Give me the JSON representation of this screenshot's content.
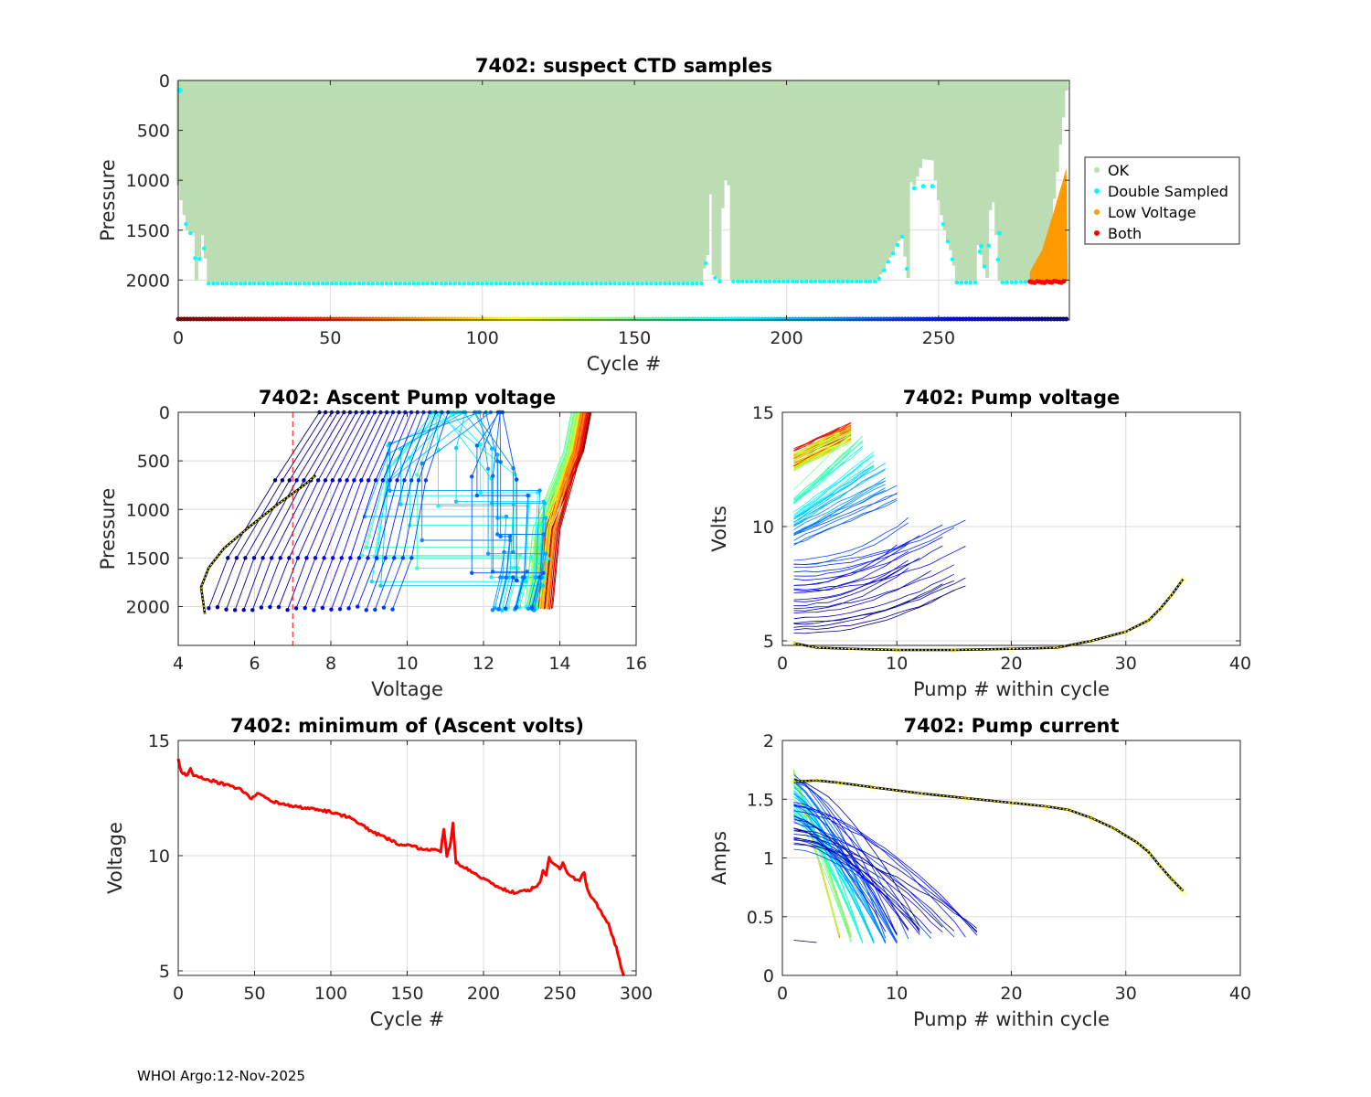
{
  "footer": "WHOI Argo:12-Nov-2025",
  "chart_data": [
    {
      "id": "suspect",
      "type": "scatter",
      "title": "7402: suspect CTD samples",
      "xlabel": "Cycle #",
      "ylabel": "Pressure",
      "xlim": [
        0,
        293
      ],
      "ylim": [
        0,
        2400
      ],
      "y_reversed": true,
      "xticks": [
        0,
        50,
        100,
        150,
        200,
        250
      ],
      "yticks": [
        0,
        500,
        1000,
        1500,
        2000
      ],
      "legend": {
        "position": "right",
        "entries": [
          {
            "label": "OK",
            "color": "#bcdcb4"
          },
          {
            "label": "Double Sampled",
            "color": "#00ffff"
          },
          {
            "label": "Low Voltage",
            "color": "#ff9900"
          },
          {
            "label": "Both",
            "color": "#ff0000"
          }
        ]
      },
      "ok_profile_bottom": [
        [
          0,
          1050
        ],
        [
          3,
          1500
        ],
        [
          5,
          1530
        ],
        [
          6,
          2000
        ],
        [
          8,
          1550
        ],
        [
          10,
          2020
        ],
        [
          172,
          2020
        ],
        [
          174,
          1750
        ],
        [
          175,
          1140
        ],
        [
          176,
          1950
        ],
        [
          178,
          2000
        ],
        [
          179,
          1280
        ],
        [
          180,
          1000
        ],
        [
          181,
          1050
        ],
        [
          182,
          2000
        ],
        [
          230,
          2000
        ],
        [
          238,
          1550
        ],
        [
          240,
          1980
        ],
        [
          241,
          1020
        ],
        [
          242,
          1050
        ],
        [
          245,
          790
        ],
        [
          248,
          800
        ],
        [
          250,
          1200
        ],
        [
          252,
          1500
        ],
        [
          254,
          1700
        ],
        [
          256,
          2010
        ],
        [
          262,
          2010
        ],
        [
          263,
          1650
        ],
        [
          265,
          1850
        ],
        [
          266,
          1980
        ],
        [
          267,
          1300
        ],
        [
          268,
          1220
        ],
        [
          269,
          1550
        ],
        [
          270,
          2010
        ],
        [
          285,
          2000
        ],
        [
          292,
          100
        ]
      ],
      "double_sampled_cycles_first": 1,
      "low_voltage_onset_cycle": 280,
      "low_voltage_top": [
        [
          280,
          1920
        ],
        [
          284,
          1700
        ],
        [
          288,
          1300
        ],
        [
          292,
          880
        ]
      ],
      "both_pressure": 2010,
      "cycle_colorbar": "jet colors across cycles 0-293 drawn at bottom edge"
    },
    {
      "id": "ascent",
      "type": "line",
      "title": "7402: Ascent Pump voltage",
      "xlabel": "Voltage",
      "ylabel": "Pressure",
      "xlim": [
        4,
        16
      ],
      "ylim": [
        0,
        2400
      ],
      "y_reversed": true,
      "xticks": [
        4,
        6,
        8,
        10,
        12,
        14,
        16
      ],
      "yticks": [
        0,
        500,
        1000,
        1500,
        2000
      ],
      "threshold_voltage": 7,
      "series_summary": "One line per cycle (jet colormap by cycle). Early cycles (red) near 13.5-14.5 V; later cycles (blue) spread from 8-14 V; last cycles (dark navy) 4.7-11 V; final cycle highlighted yellow",
      "last_cycle_yellow": [
        [
          4.7,
          2080
        ],
        [
          4.6,
          1800
        ],
        [
          4.8,
          1600
        ],
        [
          5.2,
          1400
        ],
        [
          5.8,
          1200
        ],
        [
          6.6,
          950
        ],
        [
          7.3,
          750
        ],
        [
          7.6,
          650
        ]
      ]
    },
    {
      "id": "pumpv",
      "type": "line",
      "title": "7402: Pump voltage",
      "xlabel": "Pump # within cycle",
      "ylabel": "Volts",
      "xlim": [
        0,
        40
      ],
      "ylim": [
        4.8,
        15
      ],
      "xticks": [
        0,
        10,
        20,
        30,
        40
      ],
      "yticks": [
        5,
        10,
        15
      ],
      "series_summary": "Voltage per pump stroke for each cycle (jet colormap). Early cycles 13-14.5 V for ~6 pumps; later cycles 8-11 V up to 10-17 pumps; last cycle yellow 35 pumps rising from 4.7 to 7.7 V",
      "last_cycle_yellow": [
        [
          1,
          4.9
        ],
        [
          3,
          4.7
        ],
        [
          6,
          4.65
        ],
        [
          10,
          4.6
        ],
        [
          15,
          4.6
        ],
        [
          20,
          4.65
        ],
        [
          24,
          4.7
        ],
        [
          27,
          5.0
        ],
        [
          30,
          5.4
        ],
        [
          32,
          5.9
        ],
        [
          33,
          6.4
        ],
        [
          34,
          7.0
        ],
        [
          35,
          7.7
        ]
      ]
    },
    {
      "id": "minv",
      "type": "line",
      "title": "7402: minimum of (Ascent volts)",
      "xlabel": "Cycle #",
      "ylabel": "Voltage",
      "xlim": [
        0,
        300
      ],
      "ylim": [
        4.8,
        15
      ],
      "xticks": [
        0,
        50,
        100,
        150,
        200,
        250,
        300
      ],
      "yticks": [
        5,
        10,
        15
      ],
      "series": [
        {
          "name": "min ascent voltage",
          "color": "#ff0000",
          "points": [
            [
              0,
              14.2
            ],
            [
              2,
              13.6
            ],
            [
              6,
              13.5
            ],
            [
              8,
              13.8
            ],
            [
              10,
              13.5
            ],
            [
              20,
              13.3
            ],
            [
              30,
              13.1
            ],
            [
              40,
              12.9
            ],
            [
              48,
              12.5
            ],
            [
              52,
              12.7
            ],
            [
              60,
              12.4
            ],
            [
              70,
              12.2
            ],
            [
              80,
              12.1
            ],
            [
              100,
              11.9
            ],
            [
              115,
              11.6
            ],
            [
              125,
              11.1
            ],
            [
              135,
              10.8
            ],
            [
              145,
              10.5
            ],
            [
              160,
              10.3
            ],
            [
              172,
              10.2
            ],
            [
              174,
              11.2
            ],
            [
              176,
              10.0
            ],
            [
              178,
              10.4
            ],
            [
              180,
              11.4
            ],
            [
              182,
              9.7
            ],
            [
              190,
              9.4
            ],
            [
              200,
              9.0
            ],
            [
              210,
              8.6
            ],
            [
              220,
              8.4
            ],
            [
              230,
              8.5
            ],
            [
              237,
              8.8
            ],
            [
              239,
              9.4
            ],
            [
              241,
              9.1
            ],
            [
              243,
              9.9
            ],
            [
              247,
              9.6
            ],
            [
              250,
              9.4
            ],
            [
              252,
              9.7
            ],
            [
              255,
              9.2
            ],
            [
              260,
              9.0
            ],
            [
              263,
              8.9
            ],
            [
              266,
              9.3
            ],
            [
              268,
              8.5
            ],
            [
              275,
              7.8
            ],
            [
              282,
              7.0
            ],
            [
              287,
              6.0
            ],
            [
              290,
              5.2
            ],
            [
              292,
              4.8
            ]
          ]
        }
      ]
    },
    {
      "id": "pumpc",
      "type": "line",
      "title": "7402: Pump current",
      "xlabel": "Pump # within cycle",
      "ylabel": "Amps",
      "xlim": [
        0,
        40
      ],
      "ylim": [
        0,
        2
      ],
      "xticks": [
        0,
        10,
        20,
        30,
        40
      ],
      "yticks": [
        0,
        0.5,
        1,
        1.5,
        2
      ],
      "series_summary": "Current per pump stroke for each cycle (jet colormap). Early cycles fall steeply from 1.7 A to 0.3 A within 6 pumps; later cycles stretch to 10-17 pumps; last cycle yellow 35 pumps falling from 1.67 A to 0.72 A",
      "last_cycle_yellow": [
        [
          1,
          1.65
        ],
        [
          3,
          1.66
        ],
        [
          5,
          1.64
        ],
        [
          8,
          1.6
        ],
        [
          12,
          1.55
        ],
        [
          16,
          1.51
        ],
        [
          20,
          1.47
        ],
        [
          23,
          1.44
        ],
        [
          25,
          1.41
        ],
        [
          27,
          1.34
        ],
        [
          29,
          1.25
        ],
        [
          31,
          1.13
        ],
        [
          32,
          1.05
        ],
        [
          33,
          0.93
        ],
        [
          34,
          0.82
        ],
        [
          35,
          0.72
        ]
      ]
    }
  ]
}
